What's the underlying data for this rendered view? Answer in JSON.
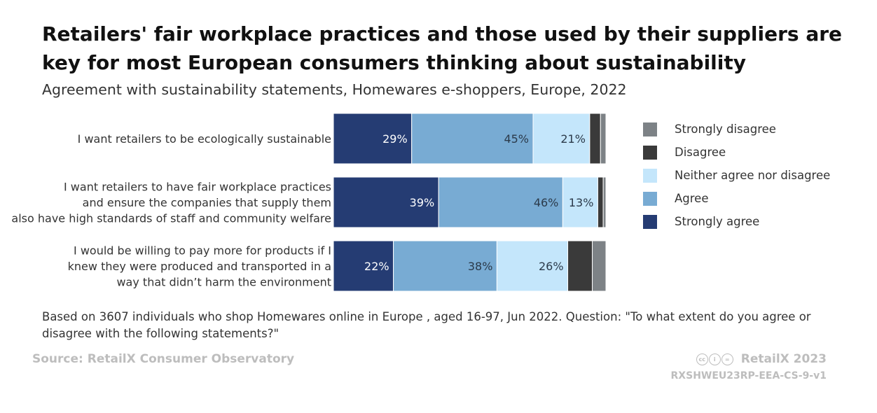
{
  "title": "Retailers' fair workplace practices and those used by their suppliers are key for most European consumers thinking about sustainability",
  "subtitle": "Agreement with sustainability statements, Homewares e-shoppers, Europe, 2022",
  "chart_data": {
    "type": "bar",
    "orientation": "horizontal",
    "stacked": true,
    "normalized": true,
    "categories": [
      [
        "I want retailers to be ecologically sustainable"
      ],
      [
        "I want retailers to have fair workplace practices",
        "and ensure the companies that supply them",
        "also have high standards of staff and community welfare"
      ],
      [
        "I would be willing to pay more for products if I",
        "knew they were produced and transported in a",
        "way that didn’t harm the environment"
      ]
    ],
    "series": [
      {
        "name": "Strongly agree",
        "color": "#253c73",
        "label_color": "#ffffff",
        "values": [
          29,
          39,
          22
        ],
        "labels": [
          "29%",
          "39%",
          "22%"
        ]
      },
      {
        "name": "Agree",
        "color": "#78abd3",
        "label_color": "#2b3a4a",
        "values": [
          45,
          46,
          38
        ],
        "labels": [
          "45%",
          "46%",
          "38%"
        ]
      },
      {
        "name": "Neither agree nor disagree",
        "color": "#c4e6fb",
        "label_color": "#2b3a4a",
        "values": [
          21,
          13,
          26
        ],
        "labels": [
          "21%",
          "13%",
          "26%"
        ]
      },
      {
        "name": "Disagree",
        "color": "#3a3a3a",
        "label_color": "#ffffff",
        "values": [
          4,
          2,
          9
        ],
        "labels": [
          "",
          "",
          ""
        ]
      },
      {
        "name": "Strongly disagree",
        "color": "#7d8286",
        "label_color": "#ffffff",
        "values": [
          2,
          1,
          5
        ],
        "labels": [
          "",
          "",
          ""
        ]
      }
    ],
    "legend_order": [
      "Strongly disagree",
      "Disagree",
      "Neither agree nor disagree",
      "Agree",
      "Strongly agree"
    ],
    "xlim": [
      0,
      100
    ],
    "grid": false,
    "legend_position": "right"
  },
  "footnote": "Based on 3607 individuals who shop Homewares online in Europe , aged 16-97, Jun 2022. Question: \"To what extent do you agree or disagree with the following statements?\"",
  "source": "Source: RetailX Consumer Observatory",
  "brand": "RetailX 2023",
  "code": "RXSHWEU23RP-EEA-CS-9-v1"
}
